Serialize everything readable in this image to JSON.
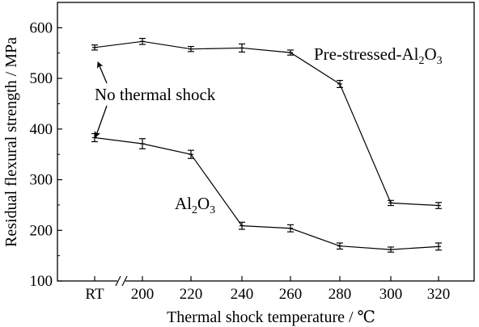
{
  "chart_data": {
    "type": "line",
    "categories": [
      "RT",
      "200",
      "220",
      "240",
      "260",
      "280",
      "300",
      "320"
    ],
    "xlabel": "Thermal shock temperature / ℃",
    "ylabel": "Residual flexural strength / MPa",
    "ylim": [
      100,
      650
    ],
    "yticks": [
      100,
      200,
      300,
      400,
      500,
      600
    ],
    "axis_break_after": "RT",
    "grid": false,
    "series": [
      {
        "name": "Pre-stressed-Al2O3",
        "label_parts": [
          "Pre-stressed-Al",
          "2",
          "O",
          "3"
        ],
        "values": [
          561,
          573,
          558,
          560,
          551,
          489,
          254,
          249
        ],
        "errors": [
          5,
          6,
          5,
          8,
          5,
          7,
          5,
          6
        ]
      },
      {
        "name": "Al2O3",
        "label_parts": [
          "Al",
          "2",
          "O",
          "3"
        ],
        "values": [
          383,
          371,
          350,
          209,
          204,
          169,
          162,
          168
        ],
        "errors": [
          8,
          10,
          8,
          7,
          7,
          6,
          5,
          7
        ]
      }
    ],
    "annotation": "No thermal shock"
  }
}
